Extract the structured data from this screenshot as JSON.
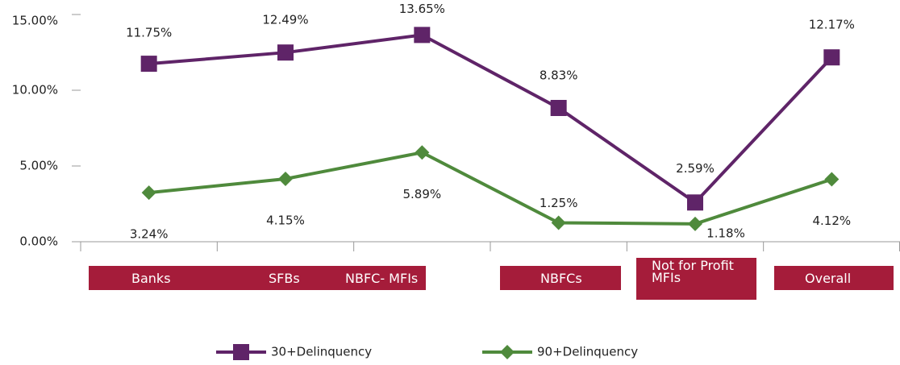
{
  "chart_data": {
    "type": "line",
    "categories": [
      "Banks",
      "SFBs",
      "NBFC- MFIs",
      "NBFCs",
      "Not for Profit MFIs",
      "Overall"
    ],
    "series": [
      {
        "name": "30+Delinquency",
        "color": "#5f2468",
        "marker": "square",
        "values": [
          11.75,
          12.49,
          13.65,
          8.83,
          2.59,
          12.17
        ],
        "value_labels": [
          "11.75%",
          "12.49%",
          "13.65%",
          "8.83%",
          "2.59%",
          "12.17%"
        ]
      },
      {
        "name": "90+Delinquency",
        "color": "#4f8a3c",
        "marker": "diamond",
        "values": [
          3.24,
          4.15,
          5.89,
          1.25,
          1.18,
          4.12
        ],
        "value_labels": [
          "3.24%",
          "4.15%",
          "5.89%",
          "1.25%",
          "1.18%",
          "4.12%"
        ]
      }
    ],
    "ylim": [
      0,
      15
    ],
    "yticks": [
      {
        "value": 0,
        "label": "0.00%"
      },
      {
        "value": 5,
        "label": "5.00%"
      },
      {
        "value": 10,
        "label": "10.00%"
      },
      {
        "value": 15,
        "label": "15.00%"
      }
    ],
    "category_box_color": "#a51c3a",
    "legend": "bottom"
  }
}
